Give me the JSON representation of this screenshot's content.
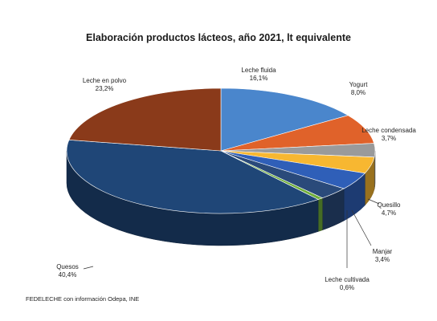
{
  "chart_data": {
    "type": "pie",
    "title": "Elaboración productos lácteos, año 2021, lt equivalente",
    "slices": [
      {
        "label": "Leche fluida",
        "value_text": "16,1%",
        "value": 16.1,
        "color": "#4a86cc"
      },
      {
        "label": "Yogurt",
        "value_text": "8,0%",
        "value": 8.0,
        "color": "#e0622a"
      },
      {
        "label": "Leche condensada",
        "value_text": "3,7%",
        "value": 3.7,
        "color": "#9a9a9a"
      },
      {
        "label": "",
        "value_text": "",
        "value": 4.4,
        "color": "#f7b731"
      },
      {
        "label": "Quesillo",
        "value_text": "4,7%",
        "value": 4.7,
        "color": "#2f5fb8"
      },
      {
        "label": "Manjar",
        "value_text": "3,4%",
        "value": 3.4,
        "color": "#2a4a7a"
      },
      {
        "label": "Leche cultivada",
        "value_text": "0,6%",
        "value": 0.6,
        "color": "#6fae3a"
      },
      {
        "label": "Quesos",
        "value_text": "40,4%",
        "value": 40.4,
        "color": "#1f4677"
      },
      {
        "label": "Leche en polvo",
        "value_text": "23,2%",
        "value": 23.2,
        "color": "#8a3a1a"
      }
    ],
    "legend": "none"
  },
  "source": "FEDELECHE con información Odepa, INE"
}
